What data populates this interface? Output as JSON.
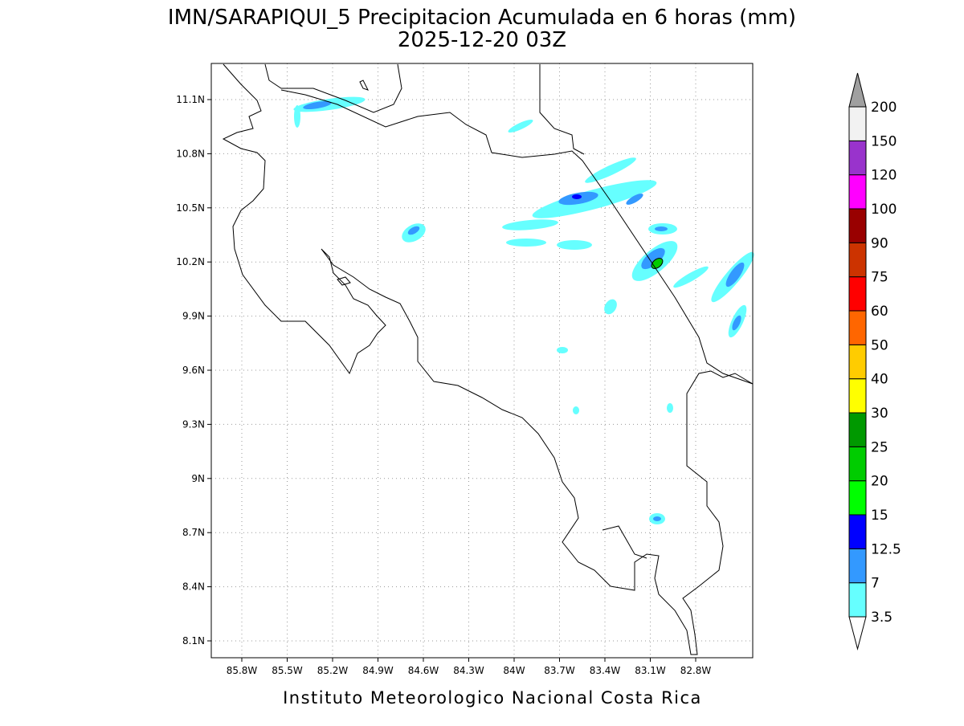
{
  "title": "IMN/SARAPIQUI_5 Precipitacion Acumulada en 6 horas (mm)",
  "subtitle": "2025-12-20 03Z",
  "map": {
    "lon_labels": [
      "85.8W",
      "85.5W",
      "85.2W",
      "84.9W",
      "84.6W",
      "84.3W",
      "84W",
      "83.7W",
      "83.4W",
      "83.1W",
      "82.8W"
    ],
    "lat_labels": [
      "11.1N",
      "10.8N",
      "10.5N",
      "10.2N",
      "9.9N",
      "9.6N",
      "9.3N",
      "9N",
      "8.7N",
      "8.4N",
      "8.1N"
    ]
  },
  "colorbar": {
    "labels": [
      "3.5",
      "7",
      "12.5",
      "15",
      "20",
      "25",
      "30",
      "40",
      "50",
      "60",
      "75",
      "90",
      "100",
      "120",
      "150",
      "200"
    ],
    "colors": [
      "#66ffff",
      "#3399ff",
      "#0000ff",
      "#00ff00",
      "#00cc00",
      "#009900",
      "#ffff00",
      "#ffcc00",
      "#ff6600",
      "#ff0000",
      "#cc3300",
      "#990000",
      "#ff00ff",
      "#9933cc",
      "#f2f2f2"
    ],
    "below_color": "#ffffff",
    "above_color": "#a0a0a0"
  },
  "footer": "Instituto Meteorologico Nacional Costa Rica"
}
